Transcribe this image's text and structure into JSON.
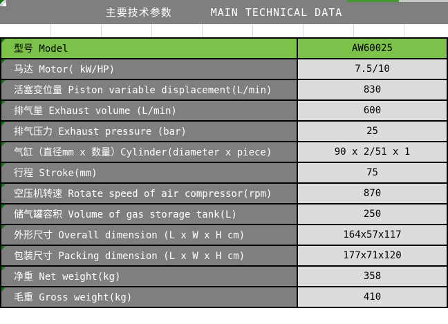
{
  "header": {
    "title_zh": "主要技术参数",
    "title_en": "MAIN TECHNICAL DATA"
  },
  "table": {
    "rows": [
      {
        "label": "型号 Model",
        "value": "AW60025",
        "highlight": true
      },
      {
        "label": "马达 Motor( kW/HP)",
        "value": "7.5/10"
      },
      {
        "label": "活塞变位量 Piston variable displacement(L/min)",
        "value": "830"
      },
      {
        "label": "排气量 Exhaust volume (L/min)",
        "value": "600"
      },
      {
        "label": "排气压力 Exhaust pressure (bar)",
        "value": "25"
      },
      {
        "label": "气缸（直径mm x 数量）Cylinder(diameter x piece)",
        "value": "90 x 2/51 x 1"
      },
      {
        "label": "行程 Stroke(mm)",
        "value": "75"
      },
      {
        "label": "空压机转速 Rotate speed of air compressor(rpm)",
        "value": "870"
      },
      {
        "label": "储气罐容积 Volume of gas storage tank(L)",
        "value": "250"
      },
      {
        "label": "外形尺寸 Overall dimension (L x W x H cm)",
        "value": "164x57x117"
      },
      {
        "label": "包装尺寸 Packing dimension (L x W x H cm)",
        "value": "177x71x120"
      },
      {
        "label": "净重 Net weight(kg)",
        "value": "358"
      },
      {
        "label": "毛重 Gross weight(kg)",
        "value": "410"
      }
    ]
  },
  "colors": {
    "header_bg": "#7F7F7F",
    "label_bg": "#7F7F7F",
    "label_text": "#FFFFFF",
    "value_bg": "#DCDCDC",
    "value_text": "#000000",
    "highlight": "#7CC24A",
    "border": "#000000",
    "gridline": "#D9D9D9",
    "triangle": "#157815",
    "strip_green": "#44982F",
    "strip_gray": "#C6C6C6"
  }
}
